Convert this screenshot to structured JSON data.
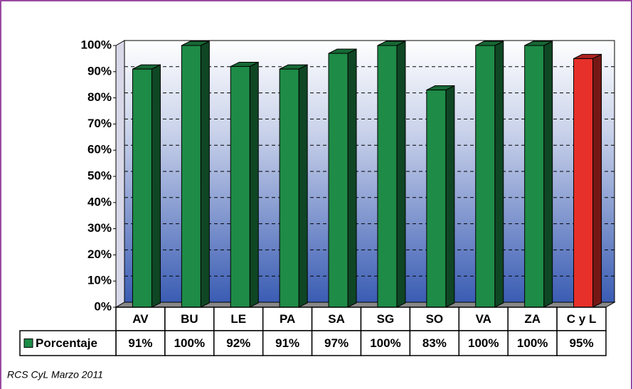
{
  "chart_data": {
    "type": "bar",
    "categories": [
      "AV",
      "BU",
      "LE",
      "PA",
      "SA",
      "SG",
      "SO",
      "VA",
      "ZA",
      "C y L"
    ],
    "series": [
      {
        "name": "Porcentaje",
        "color": "#1e8b47",
        "colors": [
          "#1e8b47",
          "#1e8b47",
          "#1e8b47",
          "#1e8b47",
          "#1e8b47",
          "#1e8b47",
          "#1e8b47",
          "#1e8b47",
          "#1e8b47",
          "#e8302a"
        ],
        "values": [
          91,
          100,
          92,
          91,
          97,
          100,
          83,
          100,
          100,
          95
        ],
        "value_labels": [
          "91%",
          "100%",
          "92%",
          "91%",
          "97%",
          "100%",
          "83%",
          "100%",
          "100%",
          "95%"
        ]
      }
    ],
    "ylim": [
      0,
      100
    ],
    "yticks": [
      {
        "value": 0,
        "label": "0%"
      },
      {
        "value": 10,
        "label": "10%"
      },
      {
        "value": 20,
        "label": "20%"
      },
      {
        "value": 30,
        "label": "30%"
      },
      {
        "value": 40,
        "label": "40%"
      },
      {
        "value": 50,
        "label": "50%"
      },
      {
        "value": 60,
        "label": "60%"
      },
      {
        "value": 70,
        "label": "70%"
      },
      {
        "value": 80,
        "label": "80%"
      },
      {
        "value": 90,
        "label": "90%"
      },
      {
        "value": 100,
        "label": "100%"
      }
    ],
    "grid": true,
    "footnote": "RCS CyL Marzo 2011"
  }
}
